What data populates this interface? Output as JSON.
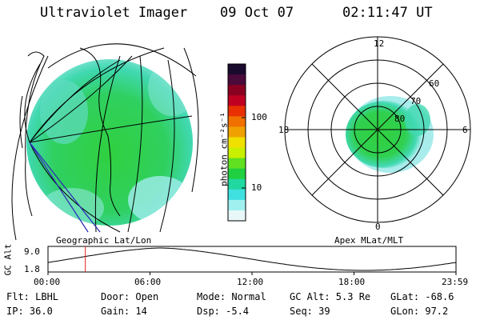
{
  "header": {
    "title": "Ultraviolet Imager",
    "date": "09 Oct 07",
    "time": "02:11:47 UT"
  },
  "geo_panel": {
    "label": "Geographic Lat/Lon"
  },
  "polar_panel": {
    "label": "Apex MLat/MLT",
    "mlt_labels": {
      "top": "12",
      "left": "18",
      "right": "6",
      "bottom": "0"
    },
    "lat_labels": [
      "60",
      "70",
      "80"
    ]
  },
  "colorbar": {
    "unit_label": "photon cm⁻²s⁻¹",
    "ticks": [
      "100",
      "10"
    ],
    "colors": [
      "#1a0a2e",
      "#4a0a3a",
      "#8a0020",
      "#c00020",
      "#e83000",
      "#f07000",
      "#f0a000",
      "#f0e000",
      "#c8f000",
      "#60e020",
      "#20d040",
      "#20d8a0",
      "#40e0e0",
      "#a0f0f0",
      "#e8f8f8"
    ]
  },
  "timeline": {
    "y_axis_label": "GC Alt",
    "y_ticks": [
      "9.0",
      "1.8"
    ],
    "x_ticks": [
      "00:00",
      "06:00",
      "12:00",
      "18:00",
      "23:59"
    ],
    "current_time_hours": 2.196
  },
  "info": {
    "flt": "Flt: LBHL",
    "ip": "IP: 36.0",
    "door": "Door: Open",
    "gain": "Gain: 14",
    "mode": "Mode: Normal",
    "dsp": "Dsp:   -5.4",
    "gcalt": "GC Alt: 5.3 Re",
    "seq": "Seq: 39",
    "glat": "GLat: -68.6",
    "glon": "GLon:  97.2"
  }
}
